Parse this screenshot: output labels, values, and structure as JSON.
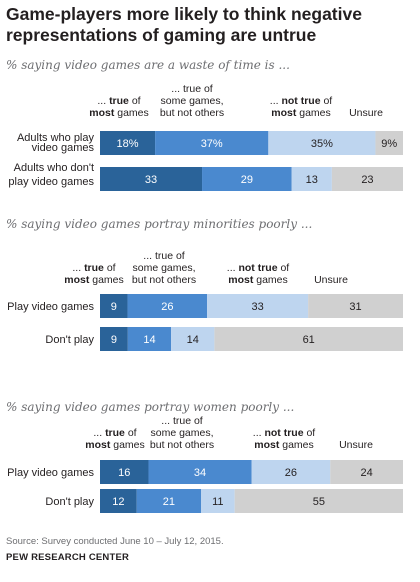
{
  "title": "Game-players more likely to think negative representations of gaming are untrue",
  "headers": {
    "true_prefix": "... ",
    "true_bold": "true",
    "true_of": " of",
    "true_most": "most",
    "true_games": " games",
    "some_line1": "... true of",
    "some_line2": "some games,",
    "some_line3": "but not others",
    "not_prefix": "... ",
    "not_bold": "not true",
    "not_of": " of",
    "not_most": "most",
    "not_games": " games",
    "unsure": "Unsure"
  },
  "colors": {
    "true_of_most": "#2a6399",
    "some": "#4a89cf",
    "not_true": "#bed5ef",
    "unsure": "#d0d0d0",
    "title": "#231f20",
    "muted": "#6d6e71"
  },
  "chart_data": [
    {
      "type": "bar",
      "stacked": true,
      "orientation": "horizontal",
      "subtitle": "% saying video games are a waste of time is ...",
      "categories": [
        "Adults who play video games",
        "Adults who don't play video games"
      ],
      "value_labels": [
        [
          "18%",
          "37%",
          "35%",
          "9%"
        ],
        [
          "33",
          "29",
          "13",
          "23"
        ]
      ],
      "series": [
        {
          "name": "... true of most games",
          "values": [
            18,
            33
          ]
        },
        {
          "name": "... true of some games, but not others",
          "values": [
            37,
            29
          ]
        },
        {
          "name": "... not true of most games",
          "values": [
            35,
            13
          ]
        },
        {
          "name": "Unsure",
          "values": [
            9,
            23
          ]
        }
      ]
    },
    {
      "type": "bar",
      "stacked": true,
      "orientation": "horizontal",
      "subtitle": "% saying video games portray minorities poorly ...",
      "categories": [
        "Play video games",
        "Don't play"
      ],
      "value_labels": [
        [
          "9",
          "26",
          "33",
          "31"
        ],
        [
          "9",
          "14",
          "14",
          "61"
        ]
      ],
      "series": [
        {
          "name": "... true of most games",
          "values": [
            9,
            9
          ]
        },
        {
          "name": "... true of some games, but not others",
          "values": [
            26,
            14
          ]
        },
        {
          "name": "... not true of most games",
          "values": [
            33,
            14
          ]
        },
        {
          "name": "Unsure",
          "values": [
            31,
            61
          ]
        }
      ]
    },
    {
      "type": "bar",
      "stacked": true,
      "orientation": "horizontal",
      "subtitle": "% saying video games portray women poorly ...",
      "categories": [
        "Play video games",
        "Don't play"
      ],
      "value_labels": [
        [
          "16",
          "34",
          "26",
          "24"
        ],
        [
          "12",
          "21",
          "11",
          "55"
        ]
      ],
      "series": [
        {
          "name": "... true of most games",
          "values": [
            16,
            12
          ]
        },
        {
          "name": "... true of some games, but not others",
          "values": [
            34,
            21
          ]
        },
        {
          "name": "... not true of most games",
          "values": [
            26,
            11
          ]
        },
        {
          "name": "Unsure",
          "values": [
            24,
            55
          ]
        }
      ]
    }
  ],
  "source": "Source: Survey conducted June 10 – July 12, 2015.",
  "brand": "PEW RESEARCH CENTER"
}
